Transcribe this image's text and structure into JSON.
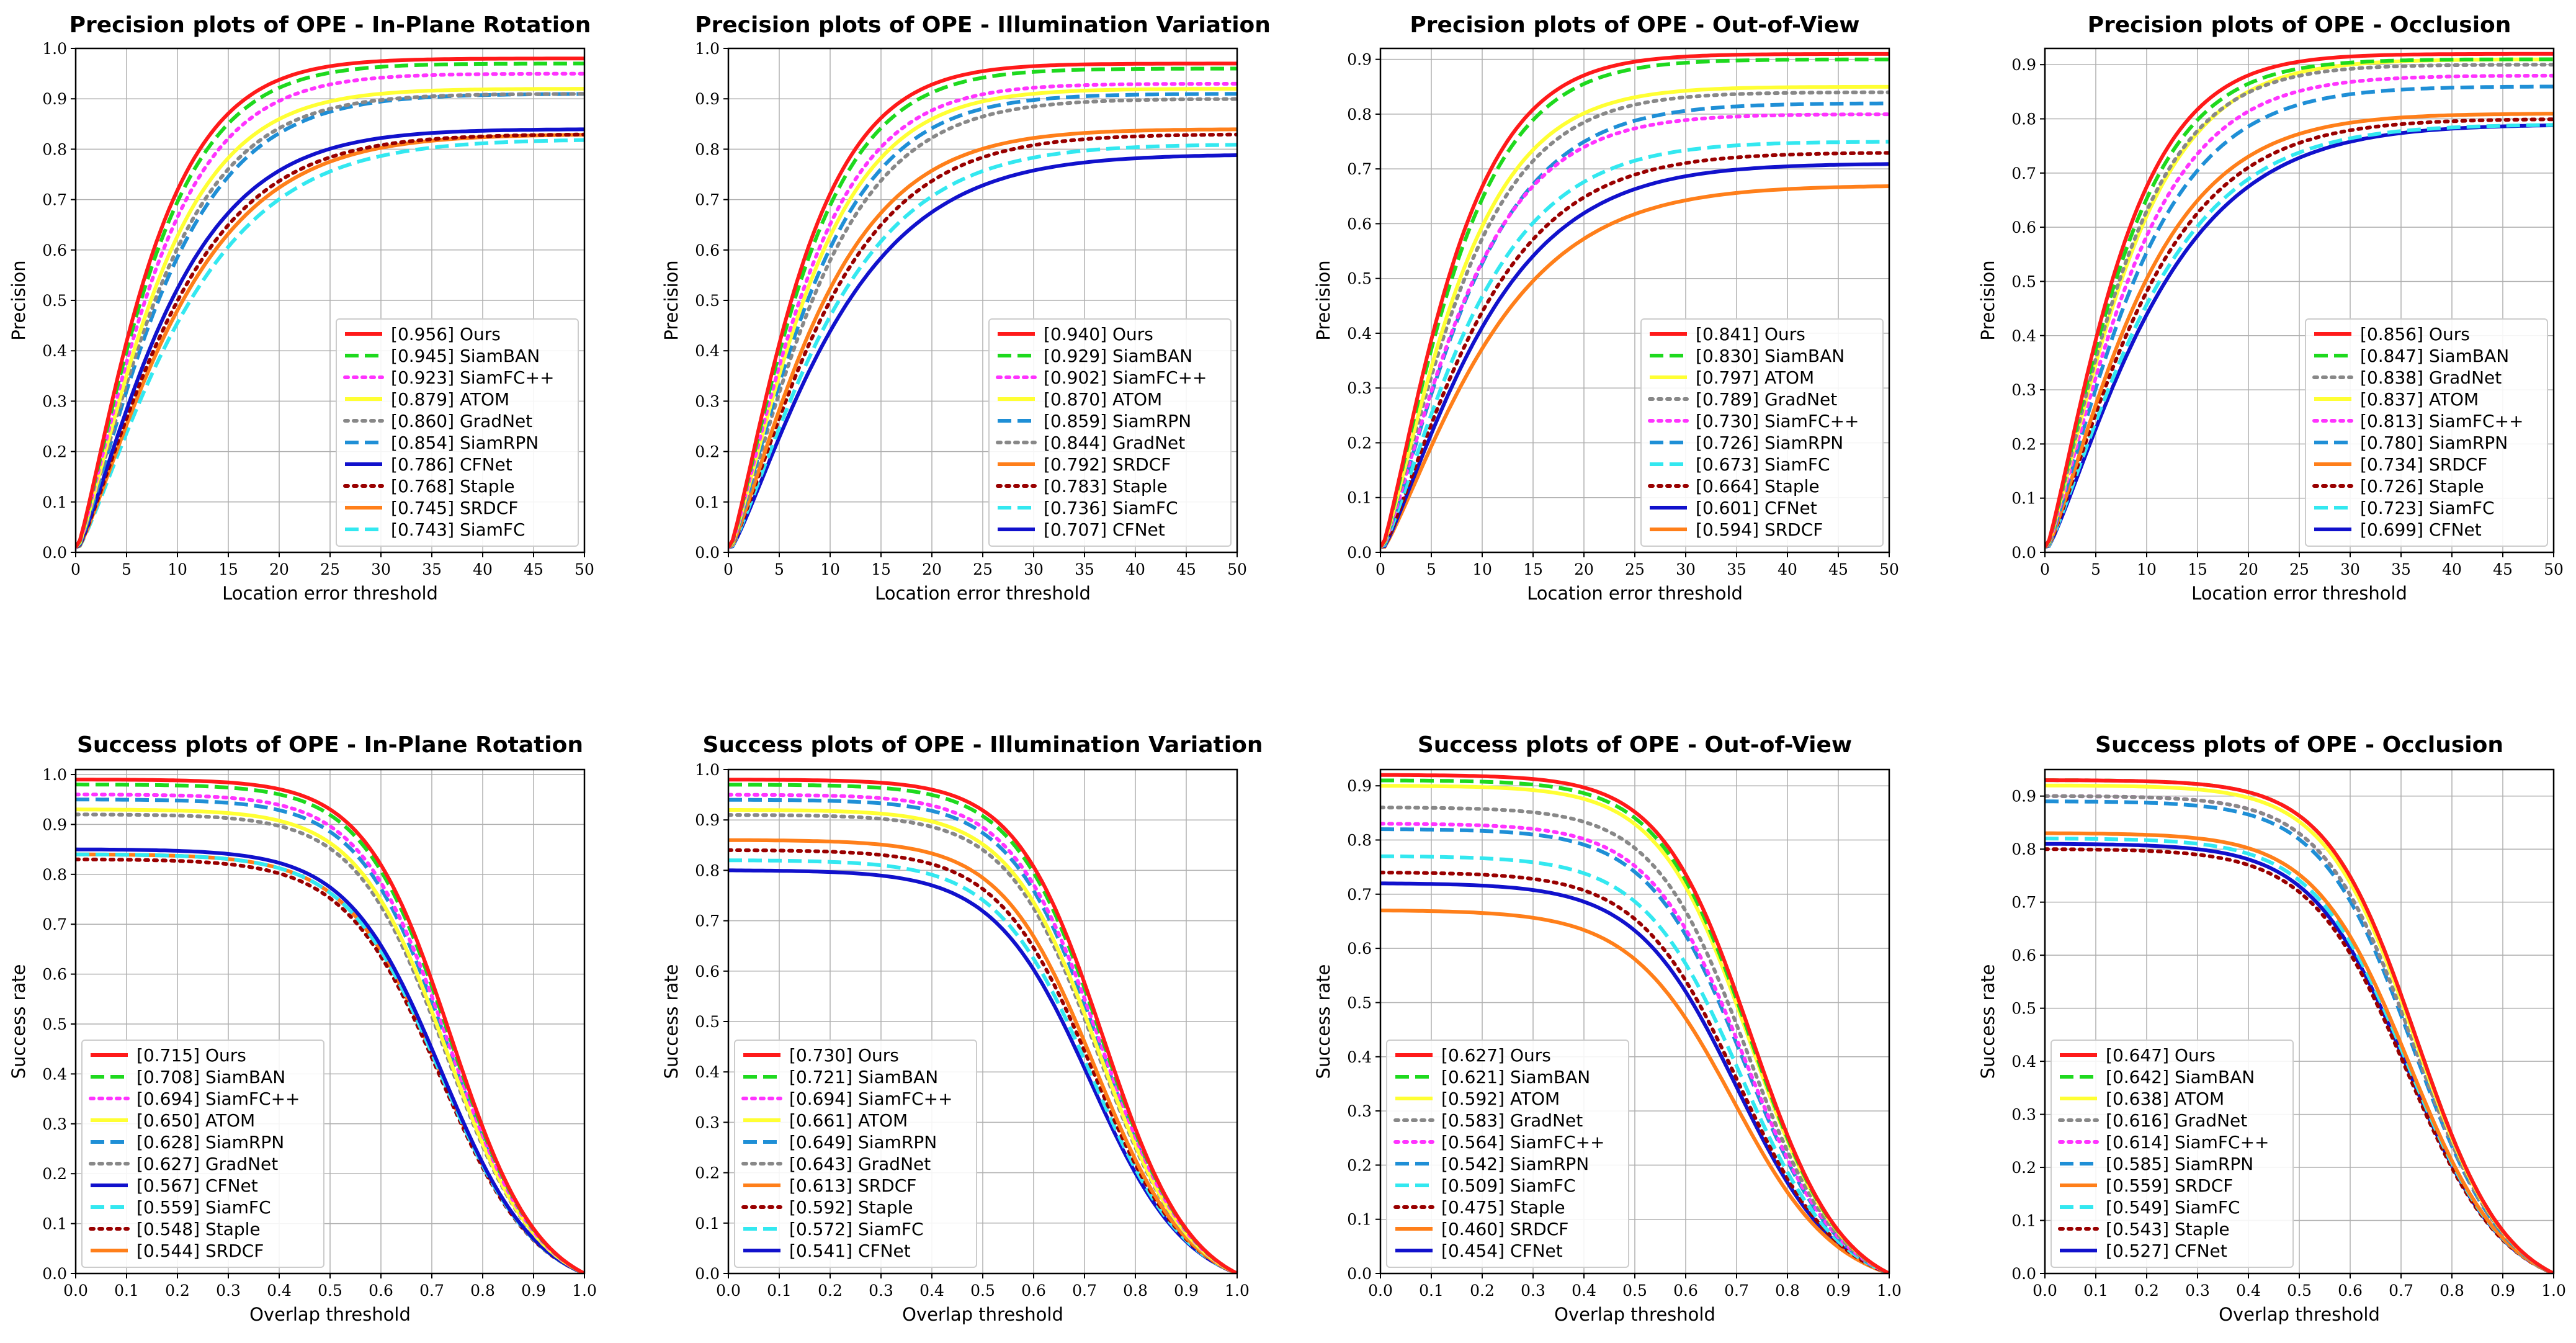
{
  "figure": {
    "description_rows": [
      "precision",
      "success"
    ]
  },
  "styles": {
    "Ours": {
      "color": "#ff1a1a",
      "dash": "solid"
    },
    "SiamBAN": {
      "color": "#1ed91e",
      "dash": "dash"
    },
    "SiamFC++": {
      "color": "#ff33ff",
      "dash": "dot"
    },
    "ATOM": {
      "color": "#ffff33",
      "dash": "solid"
    },
    "GradNet": {
      "color": "#888888",
      "dash": "dot"
    },
    "SiamRPN": {
      "color": "#1f8fd6",
      "dash": "dash"
    },
    "CFNet": {
      "color": "#1111cc",
      "dash": "solid"
    },
    "SiamFC": {
      "color": "#33e8f0",
      "dash": "dash"
    },
    "Staple": {
      "color": "#990000",
      "dash": "dot"
    },
    "SRDCF": {
      "color": "#ff7f1a",
      "dash": "solid"
    }
  },
  "chart_data": [
    {
      "type": "line",
      "kind": "precision",
      "title": "Precision plots of OPE - In-Plane Rotation",
      "xlabel": "Location error threshold",
      "ylabel": "Precision",
      "xlim": [
        0,
        50
      ],
      "ylim": [
        0,
        1.0
      ],
      "xticks": [
        "0",
        "5",
        "10",
        "15",
        "20",
        "25",
        "30",
        "35",
        "40",
        "45",
        "50"
      ],
      "yticks": [
        "0.0",
        "0.1",
        "0.2",
        "0.3",
        "0.4",
        "0.5",
        "0.6",
        "0.7",
        "0.8",
        "0.9",
        "1.0"
      ],
      "legend": "bottom-right",
      "series": [
        {
          "name": "Ours",
          "score": "0.956",
          "end": 0.98
        },
        {
          "name": "SiamBAN",
          "score": "0.945",
          "end": 0.97
        },
        {
          "name": "SiamFC++",
          "score": "0.923",
          "end": 0.95
        },
        {
          "name": "ATOM",
          "score": "0.879",
          "end": 0.92
        },
        {
          "name": "GradNet",
          "score": "0.860",
          "end": 0.91
        },
        {
          "name": "SiamRPN",
          "score": "0.854",
          "end": 0.91
        },
        {
          "name": "CFNet",
          "score": "0.786",
          "end": 0.84
        },
        {
          "name": "Staple",
          "score": "0.768",
          "end": 0.83
        },
        {
          "name": "SRDCF",
          "score": "0.745",
          "end": 0.83
        },
        {
          "name": "SiamFC",
          "score": "0.743",
          "end": 0.82
        }
      ]
    },
    {
      "type": "line",
      "kind": "precision",
      "title": "Precision plots of OPE - Illumination Variation",
      "xlabel": "Location error threshold",
      "ylabel": "Precision",
      "xlim": [
        0,
        50
      ],
      "ylim": [
        0,
        1.0
      ],
      "xticks": [
        "0",
        "5",
        "10",
        "15",
        "20",
        "25",
        "30",
        "35",
        "40",
        "45",
        "50"
      ],
      "yticks": [
        "0.0",
        "0.1",
        "0.2",
        "0.3",
        "0.4",
        "0.5",
        "0.6",
        "0.7",
        "0.8",
        "0.9",
        "1.0"
      ],
      "legend": "bottom-right",
      "series": [
        {
          "name": "Ours",
          "score": "0.940",
          "end": 0.97
        },
        {
          "name": "SiamBAN",
          "score": "0.929",
          "end": 0.96
        },
        {
          "name": "SiamFC++",
          "score": "0.902",
          "end": 0.93
        },
        {
          "name": "ATOM",
          "score": "0.870",
          "end": 0.92
        },
        {
          "name": "SiamRPN",
          "score": "0.859",
          "end": 0.91
        },
        {
          "name": "GradNet",
          "score": "0.844",
          "end": 0.9
        },
        {
          "name": "SRDCF",
          "score": "0.792",
          "end": 0.84
        },
        {
          "name": "Staple",
          "score": "0.783",
          "end": 0.83
        },
        {
          "name": "SiamFC",
          "score": "0.736",
          "end": 0.81
        },
        {
          "name": "CFNet",
          "score": "0.707",
          "end": 0.79
        }
      ]
    },
    {
      "type": "line",
      "kind": "precision",
      "title": "Precision plots of OPE - Out-of-View",
      "xlabel": "Location error threshold",
      "ylabel": "Precision",
      "xlim": [
        0,
        50
      ],
      "ylim": [
        0,
        0.92
      ],
      "xticks": [
        "0",
        "5",
        "10",
        "15",
        "20",
        "25",
        "30",
        "35",
        "40",
        "45",
        "50"
      ],
      "yticks": [
        "0.0",
        "0.1",
        "0.2",
        "0.3",
        "0.4",
        "0.5",
        "0.6",
        "0.7",
        "0.8",
        "0.9"
      ],
      "legend": "bottom-right",
      "series": [
        {
          "name": "Ours",
          "score": "0.841",
          "end": 0.91
        },
        {
          "name": "SiamBAN",
          "score": "0.830",
          "end": 0.9
        },
        {
          "name": "ATOM",
          "score": "0.797",
          "end": 0.85
        },
        {
          "name": "GradNet",
          "score": "0.789",
          "end": 0.84
        },
        {
          "name": "SiamFC++",
          "score": "0.730",
          "end": 0.8
        },
        {
          "name": "SiamRPN",
          "score": "0.726",
          "end": 0.82
        },
        {
          "name": "SiamFC",
          "score": "0.673",
          "end": 0.75
        },
        {
          "name": "Staple",
          "score": "0.664",
          "end": 0.73
        },
        {
          "name": "CFNet",
          "score": "0.601",
          "end": 0.71
        },
        {
          "name": "SRDCF",
          "score": "0.594",
          "end": 0.67
        }
      ]
    },
    {
      "type": "line",
      "kind": "precision",
      "title": "Precision plots of OPE - Occlusion",
      "xlabel": "Location error threshold",
      "ylabel": "Precision",
      "xlim": [
        0,
        50
      ],
      "ylim": [
        0,
        0.93
      ],
      "xticks": [
        "0",
        "5",
        "10",
        "15",
        "20",
        "25",
        "30",
        "35",
        "40",
        "45",
        "50"
      ],
      "yticks": [
        "0.0",
        "0.1",
        "0.2",
        "0.3",
        "0.4",
        "0.5",
        "0.6",
        "0.7",
        "0.8",
        "0.9"
      ],
      "legend": "bottom-right",
      "series": [
        {
          "name": "Ours",
          "score": "0.856",
          "end": 0.92
        },
        {
          "name": "SiamBAN",
          "score": "0.847",
          "end": 0.91
        },
        {
          "name": "GradNet",
          "score": "0.838",
          "end": 0.9
        },
        {
          "name": "ATOM",
          "score": "0.837",
          "end": 0.91
        },
        {
          "name": "SiamFC++",
          "score": "0.813",
          "end": 0.88
        },
        {
          "name": "SiamRPN",
          "score": "0.780",
          "end": 0.86
        },
        {
          "name": "SRDCF",
          "score": "0.734",
          "end": 0.81
        },
        {
          "name": "Staple",
          "score": "0.726",
          "end": 0.8
        },
        {
          "name": "SiamFC",
          "score": "0.723",
          "end": 0.79
        },
        {
          "name": "CFNet",
          "score": "0.699",
          "end": 0.79
        }
      ]
    },
    {
      "type": "line",
      "kind": "success",
      "title": "Success plots of OPE - In-Plane Rotation",
      "xlabel": "Overlap threshold",
      "ylabel": "Success rate",
      "xlim": [
        0,
        1.0
      ],
      "ylim": [
        0,
        1.01
      ],
      "xticks": [
        "0.0",
        "0.1",
        "0.2",
        "0.3",
        "0.4",
        "0.5",
        "0.6",
        "0.7",
        "0.8",
        "0.9",
        "1.0"
      ],
      "yticks": [
        "0.0",
        "0.1",
        "0.2",
        "0.3",
        "0.4",
        "0.5",
        "0.6",
        "0.7",
        "0.8",
        "0.9",
        "1.0"
      ],
      "legend": "bottom-left",
      "series": [
        {
          "name": "Ours",
          "score": "0.715",
          "start": 0.99
        },
        {
          "name": "SiamBAN",
          "score": "0.708",
          "start": 0.98
        },
        {
          "name": "SiamFC++",
          "score": "0.694",
          "start": 0.96
        },
        {
          "name": "ATOM",
          "score": "0.650",
          "start": 0.93
        },
        {
          "name": "SiamRPN",
          "score": "0.628",
          "start": 0.95
        },
        {
          "name": "GradNet",
          "score": "0.627",
          "start": 0.92
        },
        {
          "name": "CFNet",
          "score": "0.567",
          "start": 0.85
        },
        {
          "name": "SiamFC",
          "score": "0.559",
          "start": 0.84
        },
        {
          "name": "Staple",
          "score": "0.548",
          "start": 0.83
        },
        {
          "name": "SRDCF",
          "score": "0.544",
          "start": 0.84
        }
      ]
    },
    {
      "type": "line",
      "kind": "success",
      "title": "Success plots of OPE - Illumination Variation",
      "xlabel": "Overlap threshold",
      "ylabel": "Success rate",
      "xlim": [
        0,
        1.0
      ],
      "ylim": [
        0,
        1.0
      ],
      "xticks": [
        "0.0",
        "0.1",
        "0.2",
        "0.3",
        "0.4",
        "0.5",
        "0.6",
        "0.7",
        "0.8",
        "0.9",
        "1.0"
      ],
      "yticks": [
        "0.0",
        "0.1",
        "0.2",
        "0.3",
        "0.4",
        "0.5",
        "0.6",
        "0.7",
        "0.8",
        "0.9",
        "1.0"
      ],
      "legend": "bottom-left",
      "series": [
        {
          "name": "Ours",
          "score": "0.730",
          "start": 0.98
        },
        {
          "name": "SiamBAN",
          "score": "0.721",
          "start": 0.97
        },
        {
          "name": "SiamFC++",
          "score": "0.694",
          "start": 0.95
        },
        {
          "name": "ATOM",
          "score": "0.661",
          "start": 0.92
        },
        {
          "name": "SiamRPN",
          "score": "0.649",
          "start": 0.94
        },
        {
          "name": "GradNet",
          "score": "0.643",
          "start": 0.91
        },
        {
          "name": "SRDCF",
          "score": "0.613",
          "start": 0.86
        },
        {
          "name": "Staple",
          "score": "0.592",
          "start": 0.84
        },
        {
          "name": "SiamFC",
          "score": "0.572",
          "start": 0.82
        },
        {
          "name": "CFNet",
          "score": "0.541",
          "start": 0.8
        }
      ]
    },
    {
      "type": "line",
      "kind": "success",
      "title": "Success plots of OPE - Out-of-View",
      "xlabel": "Overlap threshold",
      "ylabel": "Success rate",
      "xlim": [
        0,
        1.0
      ],
      "ylim": [
        0,
        0.93
      ],
      "xticks": [
        "0.0",
        "0.1",
        "0.2",
        "0.3",
        "0.4",
        "0.5",
        "0.6",
        "0.7",
        "0.8",
        "0.9",
        "1.0"
      ],
      "yticks": [
        "0.0",
        "0.1",
        "0.2",
        "0.3",
        "0.4",
        "0.5",
        "0.6",
        "0.7",
        "0.8",
        "0.9"
      ],
      "legend": "bottom-left",
      "series": [
        {
          "name": "Ours",
          "score": "0.627",
          "start": 0.92
        },
        {
          "name": "SiamBAN",
          "score": "0.621",
          "start": 0.91
        },
        {
          "name": "ATOM",
          "score": "0.592",
          "start": 0.9
        },
        {
          "name": "GradNet",
          "score": "0.583",
          "start": 0.86
        },
        {
          "name": "SiamFC++",
          "score": "0.564",
          "start": 0.83
        },
        {
          "name": "SiamRPN",
          "score": "0.542",
          "start": 0.82
        },
        {
          "name": "SiamFC",
          "score": "0.509",
          "start": 0.77
        },
        {
          "name": "Staple",
          "score": "0.475",
          "start": 0.74
        },
        {
          "name": "SRDCF",
          "score": "0.460",
          "start": 0.67
        },
        {
          "name": "CFNet",
          "score": "0.454",
          "start": 0.72
        }
      ]
    },
    {
      "type": "line",
      "kind": "success",
      "title": "Success plots of OPE - Occlusion",
      "xlabel": "Overlap threshold",
      "ylabel": "Success rate",
      "xlim": [
        0,
        1.0
      ],
      "ylim": [
        0,
        0.95
      ],
      "xticks": [
        "0.0",
        "0.1",
        "0.2",
        "0.3",
        "0.4",
        "0.5",
        "0.6",
        "0.7",
        "0.8",
        "0.9",
        "1.0"
      ],
      "yticks": [
        "0.0",
        "0.1",
        "0.2",
        "0.3",
        "0.4",
        "0.5",
        "0.6",
        "0.7",
        "0.8",
        "0.9"
      ],
      "legend": "bottom-left",
      "series": [
        {
          "name": "Ours",
          "score": "0.647",
          "start": 0.93
        },
        {
          "name": "SiamBAN",
          "score": "0.642",
          "start": 0.93
        },
        {
          "name": "ATOM",
          "score": "0.638",
          "start": 0.92
        },
        {
          "name": "GradNet",
          "score": "0.616",
          "start": 0.9
        },
        {
          "name": "SiamFC++",
          "score": "0.614",
          "start": 0.9
        },
        {
          "name": "SiamRPN",
          "score": "0.585",
          "start": 0.89
        },
        {
          "name": "SRDCF",
          "score": "0.559",
          "start": 0.83
        },
        {
          "name": "SiamFC",
          "score": "0.549",
          "start": 0.82
        },
        {
          "name": "Staple",
          "score": "0.543",
          "start": 0.8
        },
        {
          "name": "CFNet",
          "score": "0.527",
          "start": 0.81
        }
      ]
    }
  ]
}
